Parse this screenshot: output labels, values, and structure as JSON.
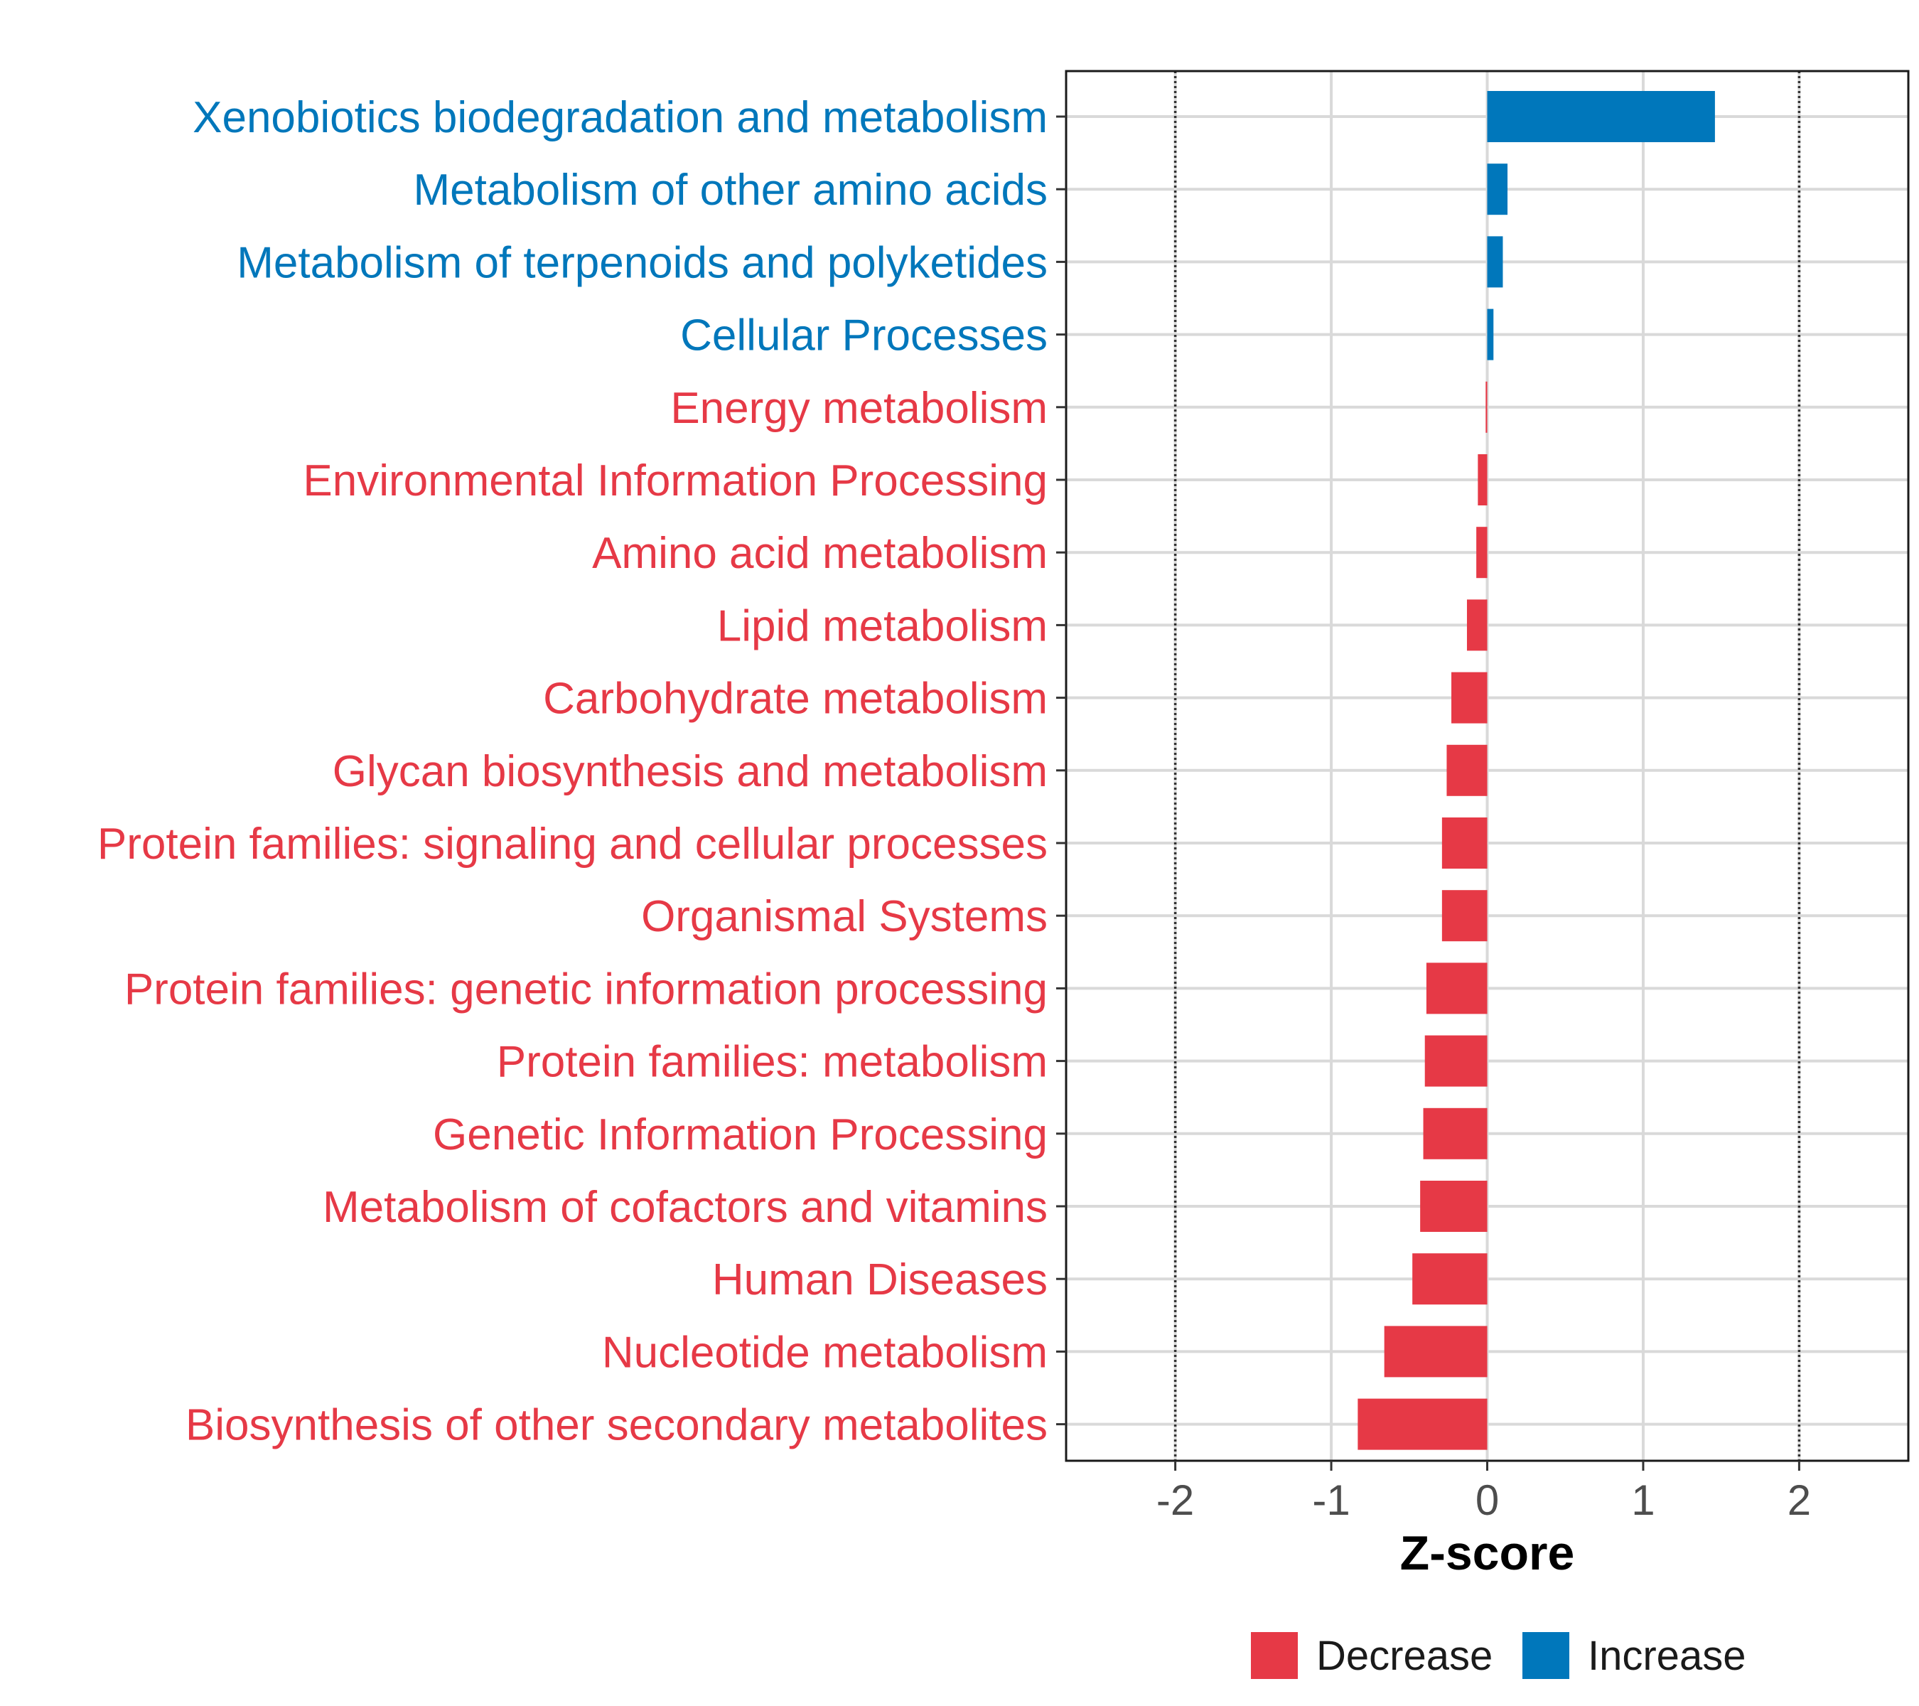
{
  "chart_data": {
    "type": "bar",
    "orientation": "horizontal",
    "categories": [
      "Xenobiotics biodegradation and metabolism",
      "Metabolism of other amino acids",
      "Metabolism of terpenoids and polyketides",
      "Cellular Processes",
      "Energy metabolism",
      "Environmental Information Processing",
      "Amino acid metabolism",
      "Lipid metabolism",
      "Carbohydrate metabolism",
      "Glycan biosynthesis and metabolism",
      "Protein families: signaling and cellular processes",
      "Organismal Systems",
      "Protein families: genetic information processing",
      "Protein families: metabolism",
      "Genetic Information Processing",
      "Metabolism of cofactors and vitamins",
      "Human Diseases",
      "Nucleotide metabolism",
      "Biosynthesis of other secondary metabolites"
    ],
    "values": [
      1.46,
      0.13,
      0.1,
      0.04,
      -0.01,
      -0.06,
      -0.07,
      -0.13,
      -0.23,
      -0.26,
      -0.29,
      -0.29,
      -0.39,
      -0.4,
      -0.41,
      -0.43,
      -0.48,
      -0.66,
      -0.83
    ],
    "groups": [
      "Increase",
      "Increase",
      "Increase",
      "Increase",
      "Decrease",
      "Decrease",
      "Decrease",
      "Decrease",
      "Decrease",
      "Decrease",
      "Decrease",
      "Decrease",
      "Decrease",
      "Decrease",
      "Decrease",
      "Decrease",
      "Decrease",
      "Decrease",
      "Decrease"
    ],
    "xlabel": "Z-score",
    "ylabel": "",
    "xlim": [
      -2.7,
      2.7
    ],
    "xticks": [
      -2,
      -1,
      0,
      1,
      2
    ],
    "xtick_labels": [
      "-2",
      "-1",
      "0",
      "1",
      "2"
    ],
    "reference_lines": [
      -2,
      2
    ],
    "grid": true,
    "legend": {
      "placement": "bottom",
      "entries": [
        {
          "label": "Decrease",
          "color": "#e63946"
        },
        {
          "label": "Increase",
          "color": "#0077bb"
        }
      ]
    },
    "colors": {
      "Decrease": "#e63946",
      "Increase": "#0077bb"
    }
  }
}
